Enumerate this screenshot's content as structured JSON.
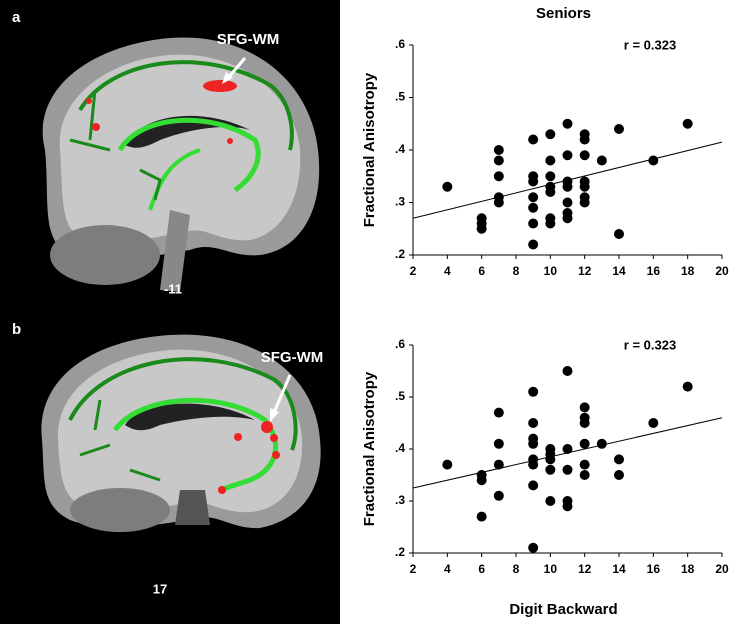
{
  "panels": [
    {
      "label": "a",
      "region": "SFG-WM",
      "slice": "-11"
    },
    {
      "label": "b",
      "region": "SFG-WM",
      "slice": "17"
    }
  ],
  "chart_data": [
    {
      "type": "scatter",
      "title": "Seniors",
      "annotation": "r = 0.323",
      "y_label": "Fractional Anisotropy",
      "color": "#000000",
      "x": [
        4,
        6,
        6,
        6,
        7,
        7,
        7,
        7,
        7,
        9,
        9,
        9,
        9,
        9,
        9,
        9,
        10,
        10,
        10,
        10,
        10,
        10,
        10,
        11,
        11,
        11,
        11,
        11,
        11,
        11,
        12,
        12,
        12,
        12,
        12,
        12,
        12,
        13,
        14,
        14,
        16,
        18
      ],
      "y": [
        0.33,
        0.27,
        0.26,
        0.25,
        0.4,
        0.38,
        0.35,
        0.31,
        0.3,
        0.42,
        0.35,
        0.34,
        0.31,
        0.29,
        0.26,
        0.22,
        0.43,
        0.38,
        0.35,
        0.33,
        0.32,
        0.27,
        0.26,
        0.45,
        0.39,
        0.34,
        0.33,
        0.3,
        0.28,
        0.27,
        0.43,
        0.42,
        0.39,
        0.34,
        0.33,
        0.31,
        0.3,
        0.38,
        0.44,
        0.24,
        0.38,
        0.45
      ],
      "fit": {
        "x": [
          2,
          20
        ],
        "y": [
          0.27,
          0.415
        ]
      },
      "xlim": [
        2,
        20
      ],
      "xticks": [
        2,
        4,
        6,
        8,
        10,
        12,
        14,
        16,
        18,
        20
      ],
      "ylim": [
        0.2,
        0.6
      ],
      "yticks": [
        {
          "value": 0.2,
          "label": ".2"
        },
        {
          "value": 0.3,
          "label": ".3"
        },
        {
          "value": 0.4,
          "label": ".4"
        },
        {
          "value": 0.5,
          "label": ".5"
        },
        {
          "value": 0.6,
          "label": ".6"
        }
      ]
    },
    {
      "type": "scatter",
      "annotation": "r = 0.323",
      "x_label": "Digit Backward",
      "y_label": "Fractional Anisotropy",
      "color": "#000000",
      "x": [
        4,
        6,
        6,
        6,
        7,
        7,
        7,
        7,
        9,
        9,
        9,
        9,
        9,
        9,
        9,
        9,
        10,
        10,
        10,
        10,
        10,
        11,
        11,
        11,
        11,
        11,
        12,
        12,
        12,
        12,
        12,
        12,
        13,
        14,
        14,
        16,
        18
      ],
      "y": [
        0.37,
        0.35,
        0.34,
        0.27,
        0.47,
        0.41,
        0.37,
        0.31,
        0.51,
        0.45,
        0.42,
        0.41,
        0.38,
        0.37,
        0.33,
        0.21,
        0.4,
        0.39,
        0.38,
        0.36,
        0.3,
        0.55,
        0.4,
        0.36,
        0.3,
        0.29,
        0.48,
        0.46,
        0.45,
        0.41,
        0.37,
        0.35,
        0.41,
        0.38,
        0.35,
        0.45,
        0.52
      ],
      "fit": {
        "x": [
          2,
          20
        ],
        "y": [
          0.325,
          0.46
        ]
      },
      "xlim": [
        2,
        20
      ],
      "xticks": [
        2,
        4,
        6,
        8,
        10,
        12,
        14,
        16,
        18,
        20
      ],
      "ylim": [
        0.2,
        0.6
      ],
      "yticks": [
        {
          "value": 0.2,
          "label": ".2"
        },
        {
          "value": 0.3,
          "label": ".3"
        },
        {
          "value": 0.4,
          "label": ".4"
        },
        {
          "value": 0.5,
          "label": ".5"
        },
        {
          "value": 0.6,
          "label": ".6"
        }
      ]
    }
  ]
}
